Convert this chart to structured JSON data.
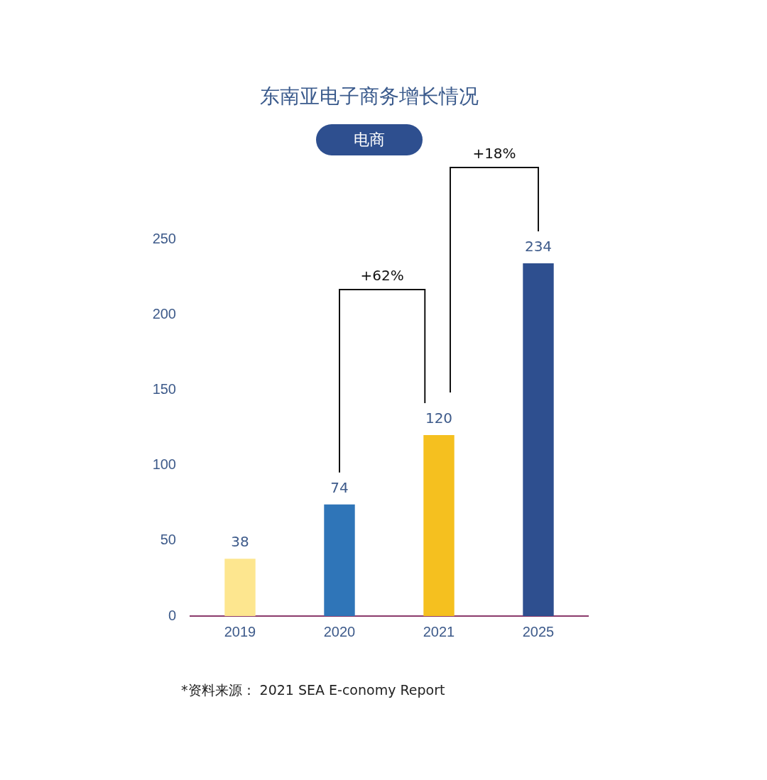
{
  "chart_data": {
    "type": "bar",
    "title": "东南亚电子商务增长情况",
    "subtitle": "电商",
    "categories": [
      "2019",
      "2020",
      "2021",
      "2025"
    ],
    "values": [
      38,
      74,
      120,
      234
    ],
    "colors": [
      "#fde68f",
      "#2f75b8",
      "#f5c01f",
      "#2e4f8f"
    ],
    "ylim": [
      0,
      250
    ],
    "yticks": [
      0,
      50,
      100,
      150,
      200,
      250
    ],
    "grid": false,
    "data_labels": true,
    "annotations": [
      "+62%",
      "+18%",
      "*资料来源： 2021 SEA E-conomy Report"
    ]
  }
}
